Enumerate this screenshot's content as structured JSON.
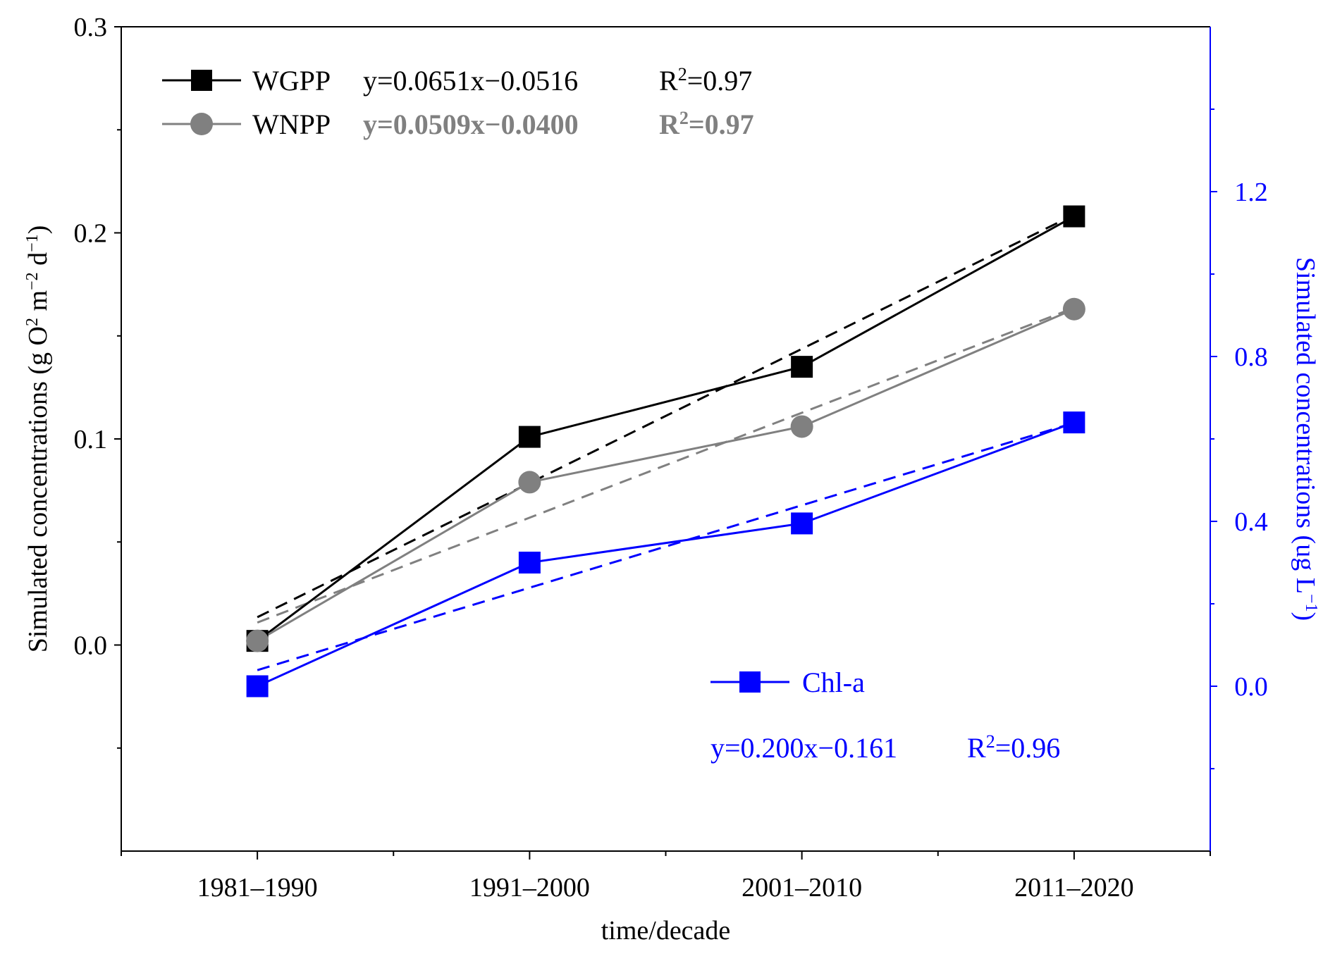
{
  "chart_data": {
    "type": "line",
    "title": "",
    "xlabel": "time/decade",
    "categories": [
      "1981–1990",
      "1991–2000",
      "2001–2010",
      "2011–2020"
    ],
    "left_axis": {
      "label": "Simulated concentrations (g O",
      "label_sup1": "2",
      "label_mid": " m",
      "label_sup2": "−2",
      "label_mid2": " d",
      "label_sup3": "−1",
      "label_end": ")",
      "ylim": [
        -0.1,
        0.3
      ],
      "ticks": [
        0.0,
        0.1,
        0.2,
        0.3
      ],
      "tick_labels": [
        "0.0",
        "0.1",
        "0.2",
        "0.3"
      ]
    },
    "right_axis": {
      "label": "Simulated concentrations (ug L",
      "label_sup": "−1",
      "label_end": ")",
      "ylim": [
        -0.4,
        1.6
      ],
      "ticks": [
        0.0,
        0.4,
        0.8,
        1.2
      ],
      "tick_labels": [
        "0.0",
        "0.4",
        "0.8",
        "1.2"
      ],
      "color": "#0000ff"
    },
    "series": [
      {
        "name": "WGPP",
        "axis": "left",
        "marker": "square",
        "color": "#000000",
        "values": [
          0.002,
          0.101,
          0.135,
          0.208
        ],
        "fit": {
          "slope": 0.0651,
          "intercept": -0.0516,
          "text": "y=0.0651x−0.0516",
          "r2_prefix": "R",
          "r2_sup": "2",
          "r2_value": "=0.97"
        }
      },
      {
        "name": "WNPP",
        "axis": "left",
        "marker": "circle",
        "color": "#808080",
        "values": [
          0.002,
          0.079,
          0.106,
          0.163
        ],
        "fit": {
          "slope": 0.0509,
          "intercept": -0.04,
          "text": "y=0.0509x−0.0400",
          "r2_prefix": "R",
          "r2_sup": "2",
          "r2_value": "=0.97"
        }
      },
      {
        "name": "Chl-a",
        "axis": "right",
        "marker": "square",
        "color": "#0000ff",
        "values": [
          0.0,
          0.3,
          0.395,
          0.64
        ],
        "fit": {
          "slope": 0.2,
          "intercept": -0.161,
          "text": "y=0.200x−0.161",
          "r2_prefix": "R",
          "r2_sup": "2",
          "r2_value": "=0.96"
        }
      }
    ]
  }
}
